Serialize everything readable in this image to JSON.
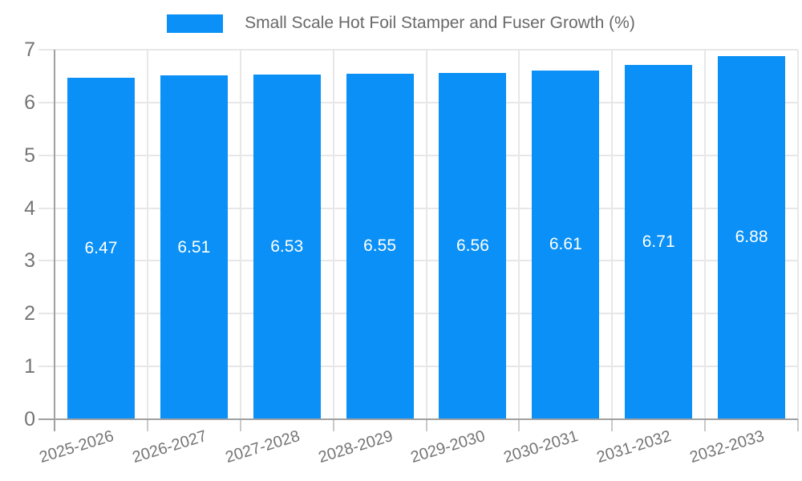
{
  "legend": {
    "label": "Small Scale Hot Foil Stamper and Fuser Growth (%)"
  },
  "chart_data": {
    "type": "bar",
    "title": "Small Scale Hot Foil Stamper and Fuser Growth (%)",
    "categories": [
      "2025-2026",
      "2026-2027",
      "2027-2028",
      "2028-2029",
      "2029-2030",
      "2030-2031",
      "2031-2032",
      "2032-2033"
    ],
    "values": [
      6.47,
      6.51,
      6.53,
      6.55,
      6.56,
      6.61,
      6.71,
      6.88
    ],
    "value_labels": [
      "6.47",
      "6.51",
      "6.53",
      "6.55",
      "6.56",
      "6.61",
      "6.71",
      "6.88"
    ],
    "xlabel": "",
    "ylabel": "",
    "ylim": [
      0,
      7
    ],
    "yticks": [
      0,
      1,
      2,
      3,
      4,
      5,
      6,
      7
    ],
    "grid": true,
    "legend_position": "top",
    "colors": {
      "bar": "#0a90f6",
      "grid": "#e7e7e7",
      "axis": "#a0a0a0",
      "category_tick": "#c9c9c9",
      "tick_text": "#757575",
      "legend_text": "#696969",
      "value_text": "#ffffff",
      "background": "#ffffff"
    }
  }
}
